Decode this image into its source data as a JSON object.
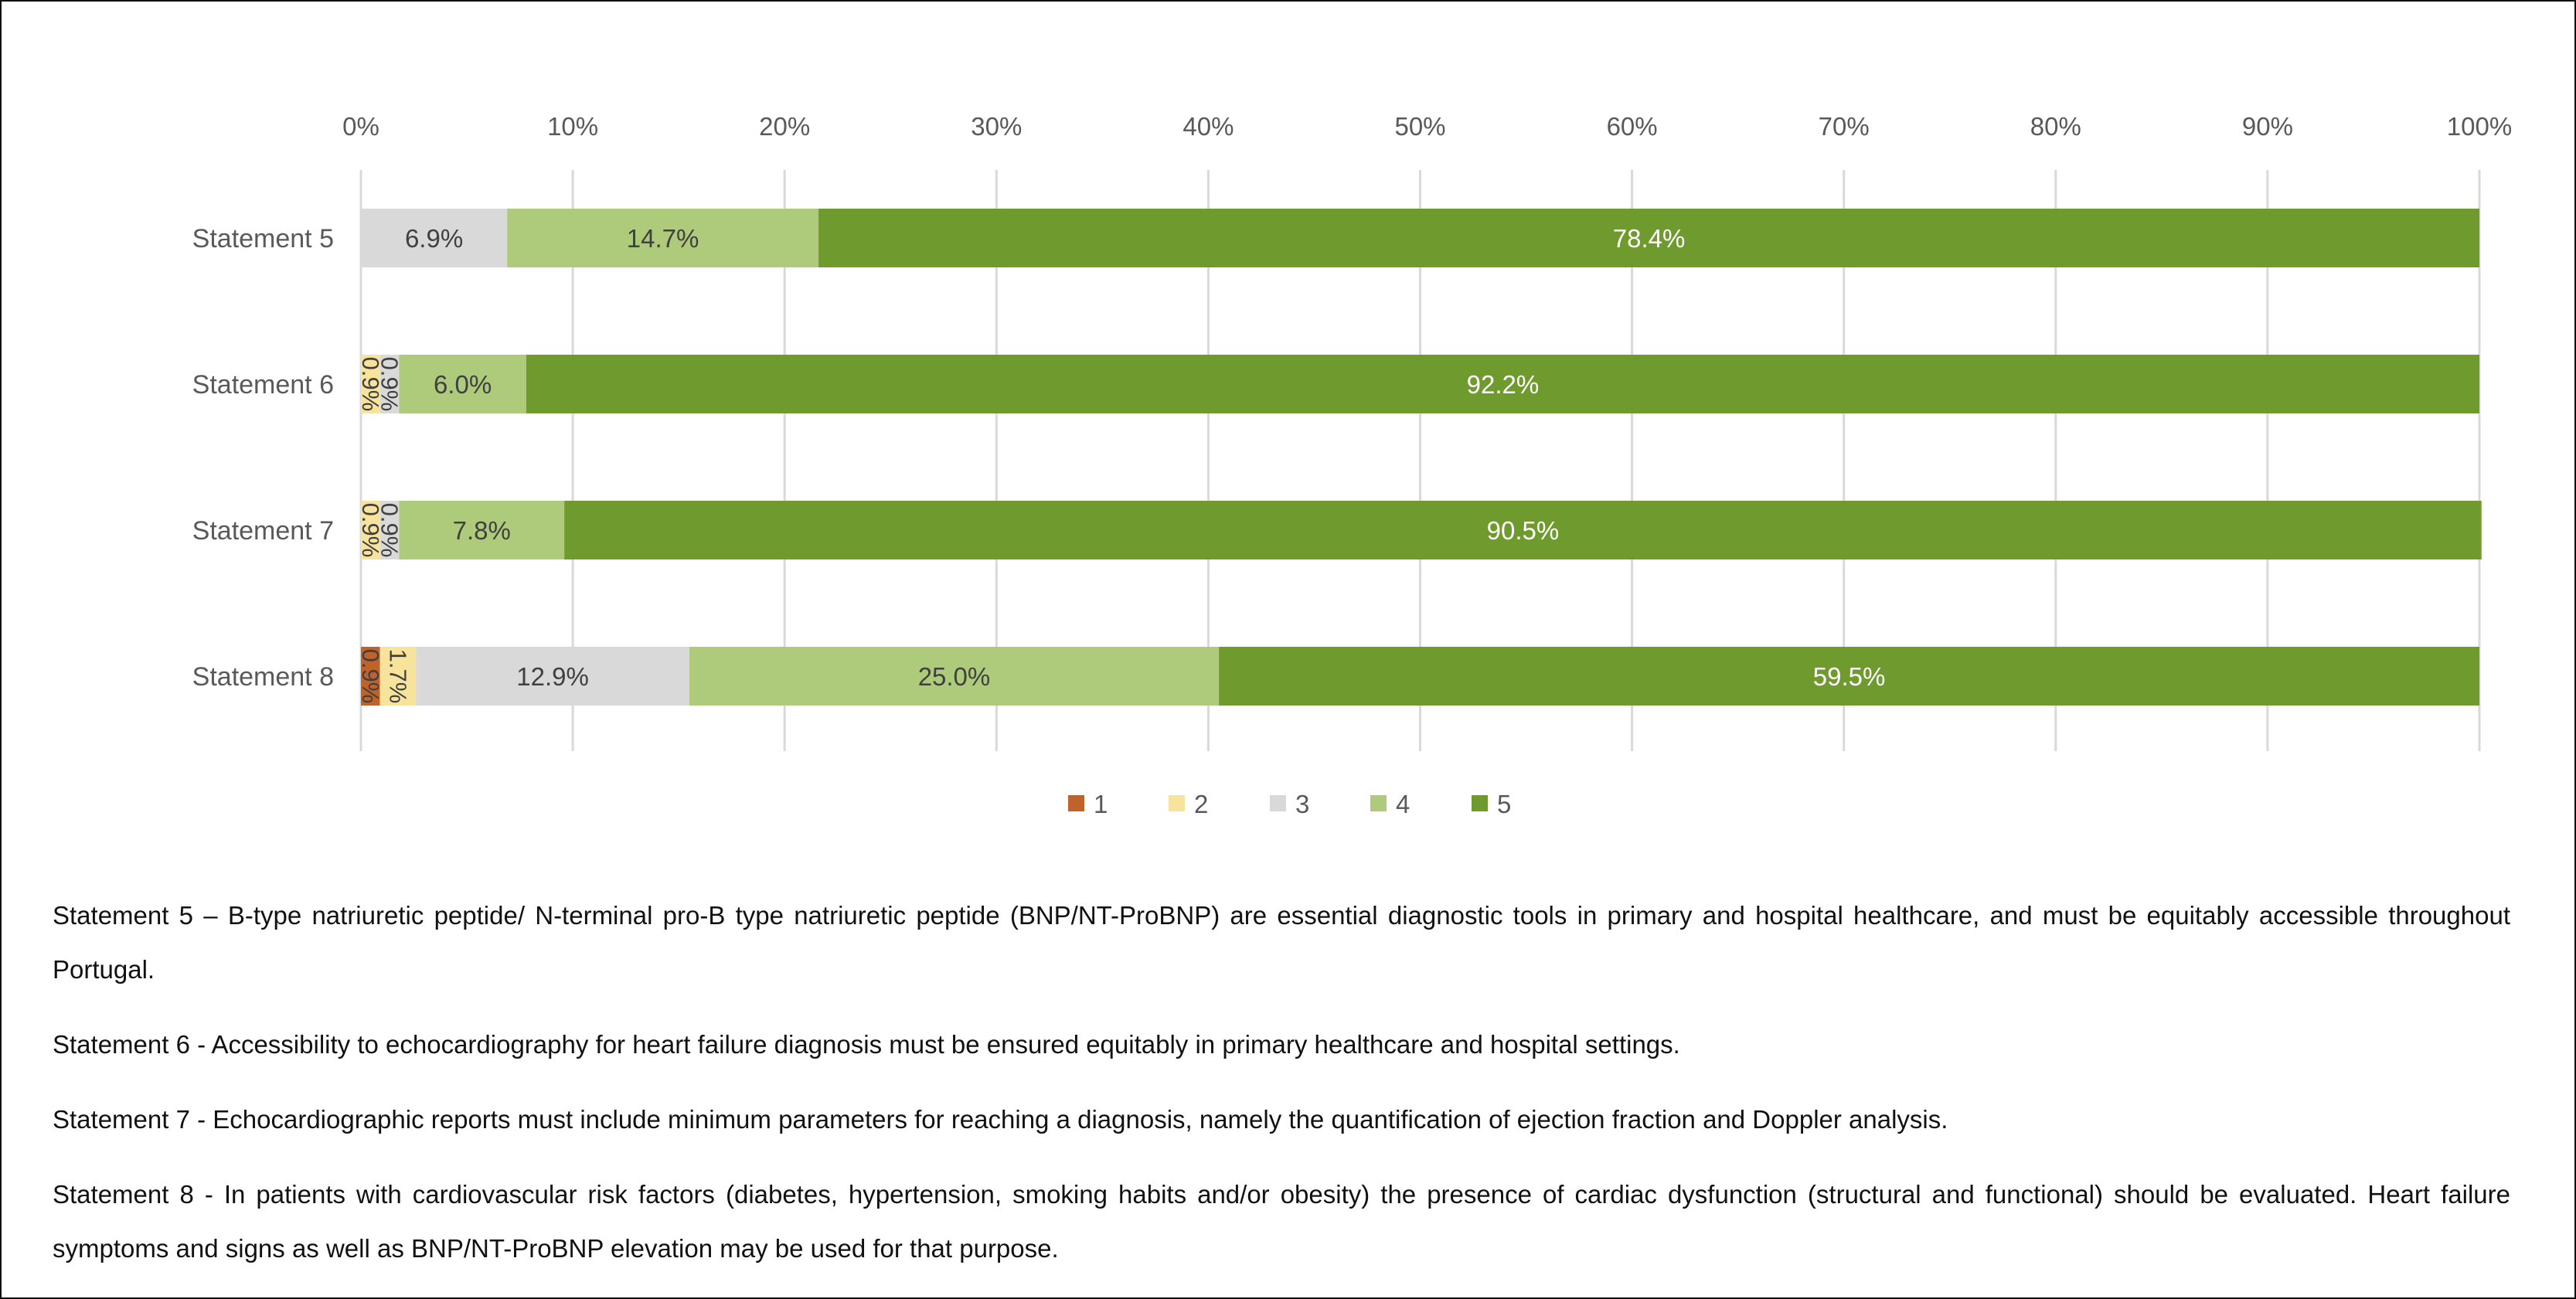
{
  "chart_data": {
    "type": "bar",
    "orientation": "horizontal",
    "stacked": true,
    "percent_stacked": true,
    "categories": [
      "Statement 5",
      "Statement 6",
      "Statement 7",
      "Statement 8"
    ],
    "x_ticks": [
      "0%",
      "10%",
      "20%",
      "30%",
      "40%",
      "50%",
      "60%",
      "70%",
      "80%",
      "90%",
      "100%"
    ],
    "xlim": [
      0,
      100
    ],
    "x_axis_position": "top",
    "grid": "vertical",
    "legend_position": "bottom",
    "series": [
      {
        "name": "1",
        "color": "#c0632a",
        "values": [
          0,
          0,
          0,
          0.9
        ],
        "labels": [
          "",
          "",
          "",
          "0.9%"
        ]
      },
      {
        "name": "2",
        "color": "#f7e39b",
        "values": [
          0,
          0.9,
          0.9,
          1.7
        ],
        "labels": [
          "",
          "0.9%",
          "0.9%",
          "1.7%"
        ]
      },
      {
        "name": "3",
        "color": "#d9d9d9",
        "values": [
          6.9,
          0.9,
          0.9,
          12.9
        ],
        "labels": [
          "6.9%",
          "0.9%",
          "0.9%",
          "12.9%"
        ]
      },
      {
        "name": "4",
        "color": "#aecb7b",
        "values": [
          14.7,
          6.0,
          7.8,
          25.0
        ],
        "labels": [
          "14.7%",
          "6.0%",
          "7.8%",
          "25.0%"
        ]
      },
      {
        "name": "5",
        "color": "#6e9a2e",
        "values": [
          78.4,
          92.2,
          90.5,
          59.5
        ],
        "labels": [
          "78.4%",
          "92.2%",
          "90.5%",
          "59.5%"
        ]
      }
    ]
  },
  "notes": [
    "Statement 5 –  B-type natriuretic peptide/ N-terminal pro-B type natriuretic peptide (BNP/NT-ProBNP)  are essential diagnostic tools in primary and hospital healthcare, and must be equitably accessible throughout Portugal.",
    "Statement 6 - Accessibility to echocardiography for heart failure  diagnosis must be ensured equitably in primary healthcare and hospital settings.",
    "Statement 7 - Echocardiographic reports  must include minimum parameters for reaching a diagnosis, namely the quantification of ejection fraction and Doppler analysis.",
    "Statement 8 - In patients with cardiovascular risk factors (diabetes, hypertension, smoking habits and/or obesity) the presence of cardiac dysfunction (structural and functional) should be evaluated. Heart failure symptoms and signs as well as BNP/NT-ProBNP elevation may be used for that purpose."
  ]
}
